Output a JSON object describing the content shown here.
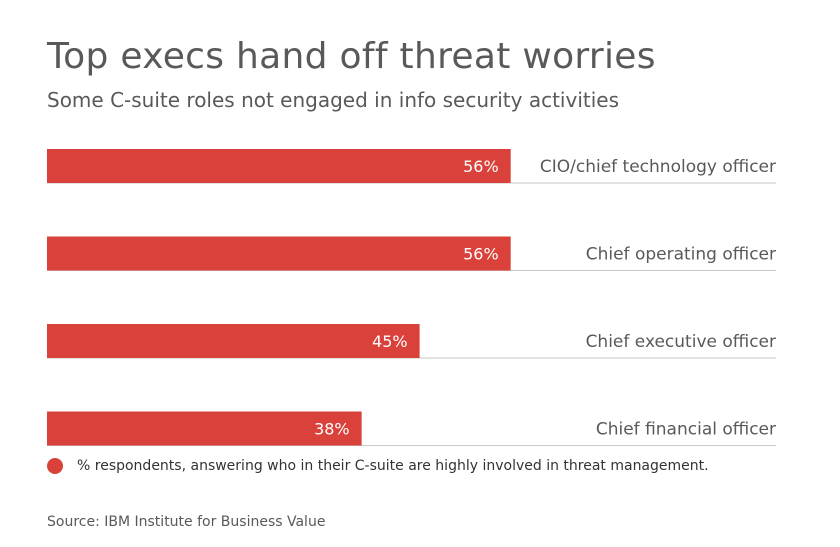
{
  "chart_data": {
    "type": "bar",
    "orientation": "horizontal",
    "title": "Top execs hand off threat worries",
    "subtitle": "Some C-suite roles not engaged in info security activities",
    "categories": [
      "CIO/chief technology officer",
      "Chief operating officer",
      "Chief executive officer",
      "Chief financial officer"
    ],
    "values": [
      56,
      56,
      45,
      38
    ],
    "value_labels": [
      "56%",
      "56%",
      "45%",
      "38%"
    ],
    "unit": "%",
    "xlim": [
      0,
      100
    ],
    "legend": {
      "label": "% respondents, answering who in their C-suite are highly involved in threat management.",
      "placement": "bottom-left"
    },
    "source": "Source: IBM Institute for Business Value",
    "colors": {
      "bar": "#d9413a",
      "baseline": "#c8c8c8",
      "text": "#595959"
    }
  }
}
